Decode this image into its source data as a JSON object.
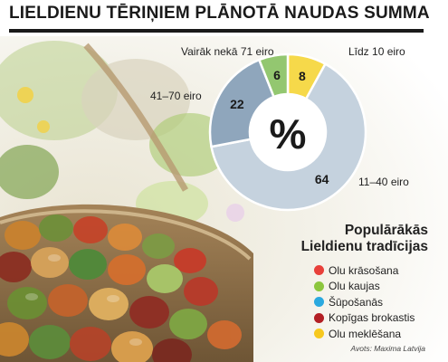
{
  "title": "LIELDIENU TĒRIŅIEM PLĀNOTĀ NAUDAS SUMMA",
  "chart_data": {
    "type": "pie",
    "center_symbol": "%",
    "slices": [
      {
        "label": "Līdz 10 eiro",
        "value": 8,
        "color": "#f6d94a"
      },
      {
        "label": "11–40 eiro",
        "value": 64,
        "color": "#c5d2de"
      },
      {
        "label": "41–70 eiro",
        "value": 22,
        "color": "#8fa6bc"
      },
      {
        "label": "Vairāk nekā 71 eiro",
        "value": 6,
        "color": "#93c770"
      }
    ]
  },
  "traditions": {
    "title_line1": "Populārākās",
    "title_line2": "Lieldienu tradīcijas",
    "items": [
      {
        "label": "Olu krāsošana",
        "color": "#e8403a"
      },
      {
        "label": "Olu kaujas",
        "color": "#8cc63e"
      },
      {
        "label": "Šūpošanās",
        "color": "#2aa9df"
      },
      {
        "label": "Kopīgas brokastis",
        "color": "#b21f24"
      },
      {
        "label": "Olu meklēšana",
        "color": "#f6c81e"
      }
    ]
  },
  "source": "Avots: Maxima Latvija"
}
